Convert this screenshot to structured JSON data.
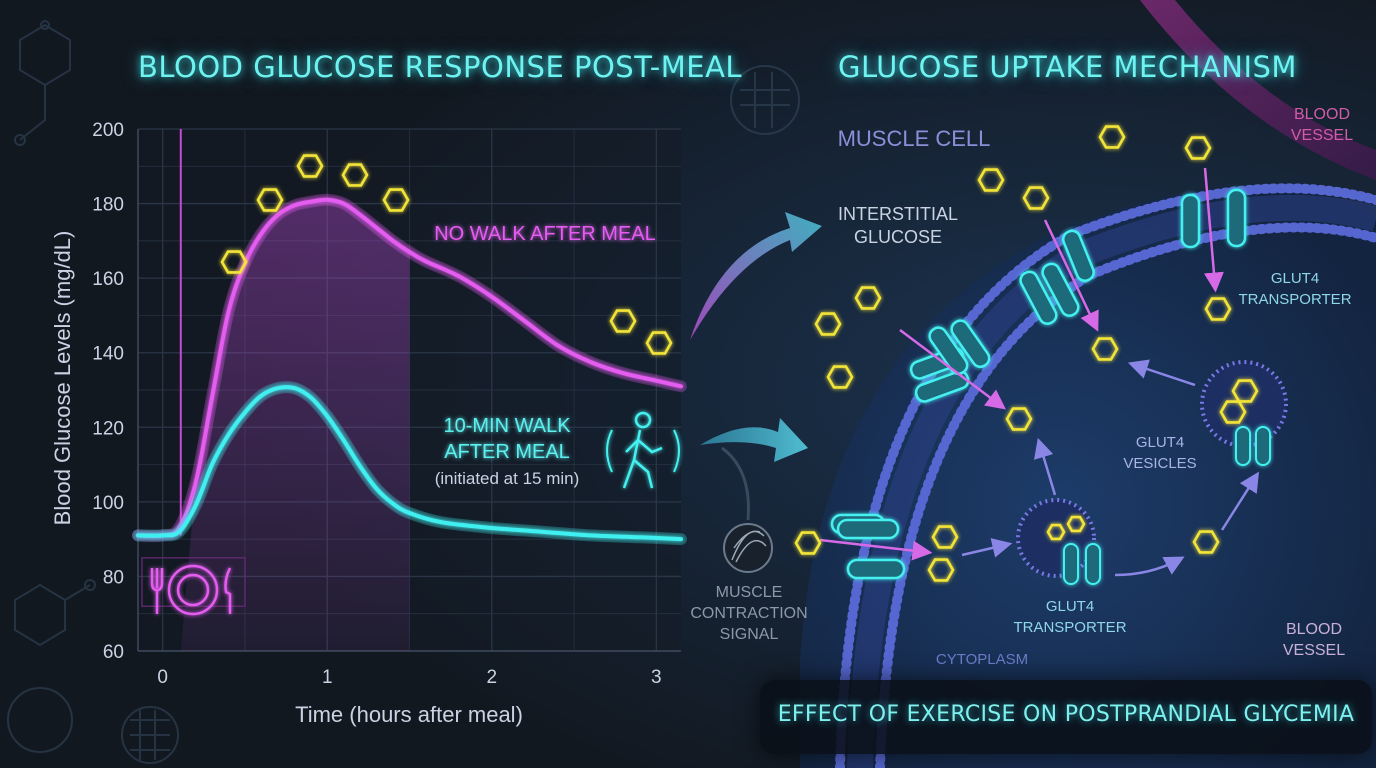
{
  "chart_data": {
    "type": "line",
    "title": "BLOOD GLUCOSE RESPONSE POST-MEAL",
    "xlabel": "Time (hours after meal)",
    "ylabel": "Blood Glucose Levels (mg/dL)",
    "xlim": [
      -0.15,
      3.15
    ],
    "ylim": [
      60,
      200
    ],
    "xticks": [
      0,
      1,
      2,
      3
    ],
    "yticks": [
      60,
      80,
      100,
      120,
      140,
      160,
      180,
      200
    ],
    "grid": true,
    "series": [
      {
        "name": "NO WALK AFTER MEAL",
        "color": "#e45cf0",
        "x": [
          -0.15,
          0.0,
          0.1,
          0.2,
          0.3,
          0.4,
          0.5,
          0.6,
          0.7,
          0.8,
          0.9,
          1.0,
          1.1,
          1.2,
          1.3,
          1.4,
          1.5,
          1.6,
          1.8,
          2.0,
          2.2,
          2.4,
          2.6,
          2.8,
          3.0,
          3.15
        ],
        "y": [
          91,
          91,
          93,
          105,
          128,
          151,
          164,
          172,
          177,
          179.5,
          180.5,
          181,
          180,
          177,
          173.5,
          170,
          167,
          164.5,
          160.5,
          155,
          148.5,
          142,
          137.5,
          134.5,
          132.5,
          131
        ]
      },
      {
        "name": "10-MIN WALK AFTER MEAL",
        "note": "(initiated at 15 min)",
        "color": "#3ff0f0",
        "x": [
          -0.15,
          0.0,
          0.1,
          0.2,
          0.3,
          0.4,
          0.5,
          0.6,
          0.7,
          0.8,
          0.9,
          1.0,
          1.1,
          1.2,
          1.3,
          1.4,
          1.5,
          1.7,
          2.0,
          2.3,
          2.6,
          2.9,
          3.15
        ],
        "y": [
          91,
          91,
          92,
          99,
          110,
          118,
          124,
          128.5,
          130.5,
          130.5,
          128,
          123,
          116.5,
          109.5,
          103.5,
          99.5,
          97,
          94.5,
          93,
          92,
          91,
          90.5,
          90
        ]
      }
    ],
    "shaded_region_x": [
      0.11,
      1.5
    ],
    "meal_marker_x": 0.11
  },
  "chart_labels": {
    "no_walk": "NO WALK AFTER MEAL",
    "walk_line1": "10-MIN WALK",
    "walk_line2": "AFTER MEAL",
    "walk_note": "(initiated at 15 min)"
  },
  "mechanism": {
    "title": "GLUCOSE UPTAKE MECHANISM",
    "muscle_cell": "MUSCLE CELL",
    "interstitial_glucose": [
      "INTERSTITIAL",
      "GLUCOSE"
    ],
    "glut4_transporter_top": [
      "GLUT4",
      "TRANSPORTER"
    ],
    "glut4_vesicles": [
      "GLUT4",
      "VESICLES"
    ],
    "glut4_transporter_bottom": [
      "GLUT4",
      "TRANSPORTER"
    ],
    "blood_vessel_top": [
      "BLOOD",
      "VESSEL"
    ],
    "blood_vessel_bottom": [
      "BLOOD",
      "VESSEL"
    ],
    "cytoplasm": "CYTOPLASM",
    "muscle_contraction_signal": [
      "MUSCLE",
      "CONTRACTION",
      "SIGNAL"
    ]
  },
  "footer": {
    "text": "EFFECT OF EXERCISE ON POSTPRANDIAL GLYCEMIA"
  },
  "colors": {
    "background": "#121820",
    "no_walk": "#e45cf0",
    "walk": "#3ff0f0",
    "glucose": "#f2e437",
    "title": "#6ff3f0"
  }
}
